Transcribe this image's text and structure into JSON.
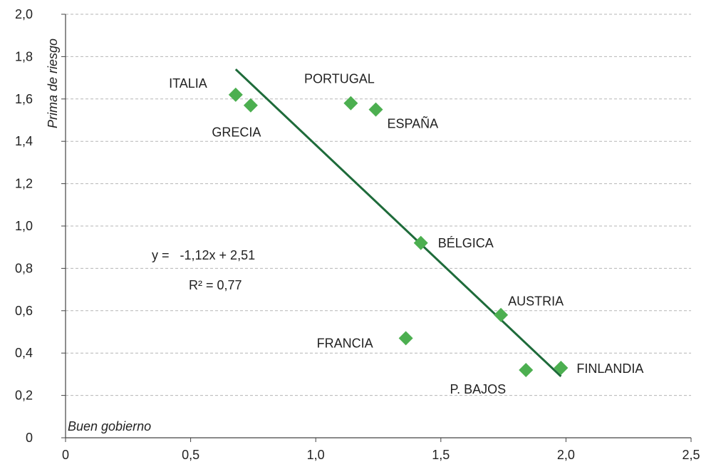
{
  "chart_data": {
    "type": "scatter",
    "title": "",
    "xlabel": "Buen gobierno",
    "ylabel": "Prima de riesgo",
    "xlim": [
      0,
      2.5
    ],
    "ylim": [
      0,
      2.0
    ],
    "x_ticks": [
      "0",
      "0,5",
      "1,0",
      "1,5",
      "2,0",
      "2,5"
    ],
    "y_ticks": [
      "0",
      "0,2",
      "0,4",
      "0,6",
      "0,8",
      "1,0",
      "1,2",
      "1,4",
      "1,6",
      "1,8",
      "2,0"
    ],
    "grid": "horizontal-dashed",
    "point_color": "#4caf50",
    "line_color": "#1e6b3a",
    "points": [
      {
        "label": "ITALIA",
        "x": 0.68,
        "y": 1.62
      },
      {
        "label": "GRECIA",
        "x": 0.74,
        "y": 1.57
      },
      {
        "label": "PORTUGAL",
        "x": 1.14,
        "y": 1.58
      },
      {
        "label": "ESPAÑA",
        "x": 1.24,
        "y": 1.55
      },
      {
        "label": "BÉLGICA",
        "x": 1.42,
        "y": 0.92
      },
      {
        "label": "AUSTRIA",
        "x": 1.74,
        "y": 0.58
      },
      {
        "label": "FRANCIA",
        "x": 1.36,
        "y": 0.47
      },
      {
        "label": "P. BAJOS",
        "x": 1.84,
        "y": 0.32
      },
      {
        "label": "FINLANDIA",
        "x": 1.98,
        "y": 0.33
      }
    ],
    "trendline": {
      "x": [
        0.68,
        1.98
      ],
      "y": [
        1.74,
        0.29
      ]
    },
    "equation": "y =   -1,12x + 2,51",
    "r_squared": "R² = 0,77"
  }
}
